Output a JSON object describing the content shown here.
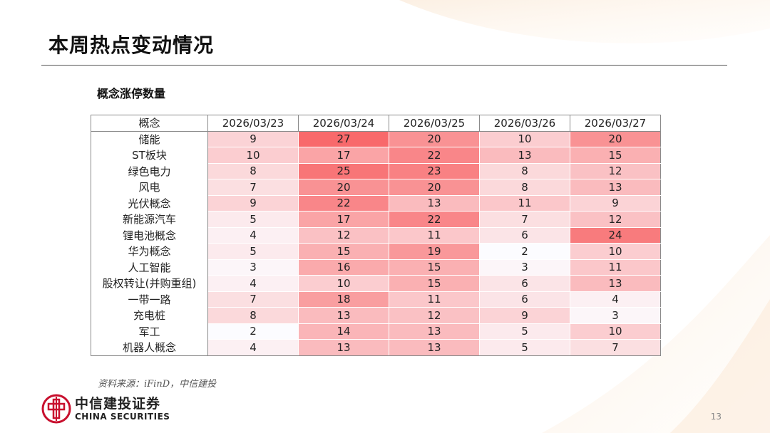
{
  "title": "本周热点变动情况",
  "subtitle": "概念涨停数量",
  "table": {
    "corner": "概念",
    "dates": [
      "2026/03/23",
      "2026/03/24",
      "2026/03/25",
      "2026/03/26",
      "2026/03/27"
    ],
    "rows": [
      {
        "label": "储能",
        "values": [
          9,
          27,
          20,
          10,
          20
        ]
      },
      {
        "label": "ST板块",
        "values": [
          10,
          17,
          22,
          13,
          15
        ]
      },
      {
        "label": "绿色电力",
        "values": [
          8,
          25,
          23,
          8,
          12
        ]
      },
      {
        "label": "风电",
        "values": [
          7,
          20,
          20,
          8,
          13
        ]
      },
      {
        "label": "光伏概念",
        "values": [
          9,
          22,
          13,
          11,
          9
        ]
      },
      {
        "label": "新能源汽车",
        "values": [
          5,
          17,
          22,
          7,
          12
        ]
      },
      {
        "label": "锂电池概念",
        "values": [
          4,
          12,
          11,
          6,
          24
        ]
      },
      {
        "label": "华为概念",
        "values": [
          5,
          15,
          19,
          2,
          10
        ]
      },
      {
        "label": "人工智能",
        "values": [
          3,
          16,
          15,
          3,
          11
        ]
      },
      {
        "label": "股权转让(并购重组)",
        "values": [
          4,
          10,
          15,
          6,
          13
        ]
      },
      {
        "label": "一带一路",
        "values": [
          7,
          18,
          11,
          6,
          4
        ]
      },
      {
        "label": "充电桩",
        "values": [
          8,
          13,
          12,
          9,
          3
        ]
      },
      {
        "label": "军工",
        "values": [
          2,
          14,
          13,
          5,
          10
        ]
      },
      {
        "label": "机器人概念",
        "values": [
          4,
          13,
          13,
          5,
          7
        ]
      }
    ]
  },
  "source": "资料来源：iFinD，中信建投",
  "logo": {
    "cn": "中信建投证券",
    "en": "CHINA SECURITIES"
  },
  "page_number": "13",
  "colors": {
    "heat_high": "#f8696b",
    "heat_low": "#fcfcff",
    "brand_red": "#c8102e"
  }
}
